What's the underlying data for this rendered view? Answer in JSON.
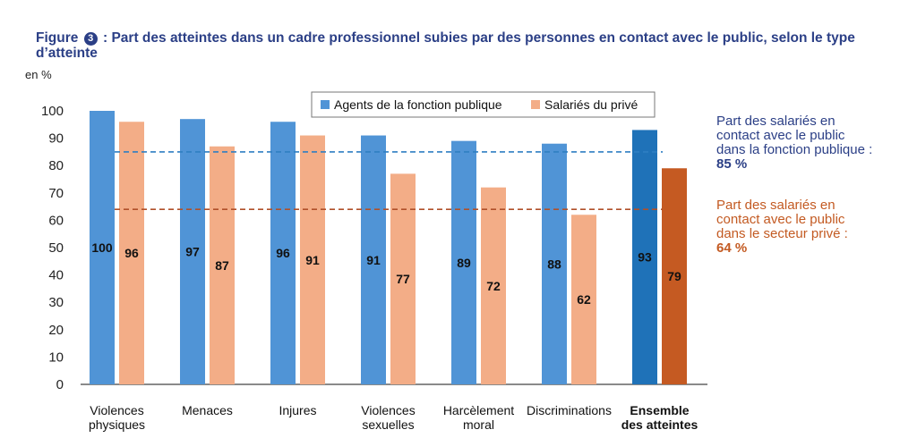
{
  "figure": {
    "label": "Figure",
    "number": "3",
    "title": ": Part des atteintes dans un cadre professionnel subies par des personnes en contact avec le public, selon le type d’atteinte",
    "unit": "en %"
  },
  "notes": {
    "public_text": "Part des salariés en contact avec le public dans la fonction publique :",
    "public_value": "85 %",
    "private_text": "Part des salariés en contact avec le public dans le secteur privé :",
    "private_value": "64 %"
  },
  "chart_data": {
    "type": "bar",
    "categories": [
      [
        "Violences",
        "physiques"
      ],
      [
        "Menaces"
      ],
      [
        "Injures"
      ],
      [
        "Violences",
        "sexuelles"
      ],
      [
        "Harcèlement",
        "moral"
      ],
      [
        "Discriminations"
      ],
      [
        "Ensemble",
        "des atteintes"
      ]
    ],
    "emphasized_category_index": 6,
    "series": [
      {
        "name": "Agents de la fonction publique",
        "values": [
          100,
          97,
          96,
          91,
          89,
          88,
          93
        ],
        "color": "#5094d6",
        "emphasis_color": "#1f72b8"
      },
      {
        "name": "Salariés du privé",
        "values": [
          96,
          87,
          91,
          77,
          72,
          62,
          79
        ],
        "color": "#f3ad87",
        "emphasis_color": "#c55a22"
      }
    ],
    "reference_lines": [
      {
        "value": 85,
        "color": "#2f7fc2",
        "style": "dashed"
      },
      {
        "value": 64,
        "color": "#b0502a",
        "style": "dashed"
      }
    ],
    "yticks": [
      0,
      10,
      20,
      30,
      40,
      50,
      60,
      70,
      80,
      90,
      100
    ],
    "ylim": [
      0,
      100
    ],
    "legend_position": "top-center",
    "grid": false
  }
}
